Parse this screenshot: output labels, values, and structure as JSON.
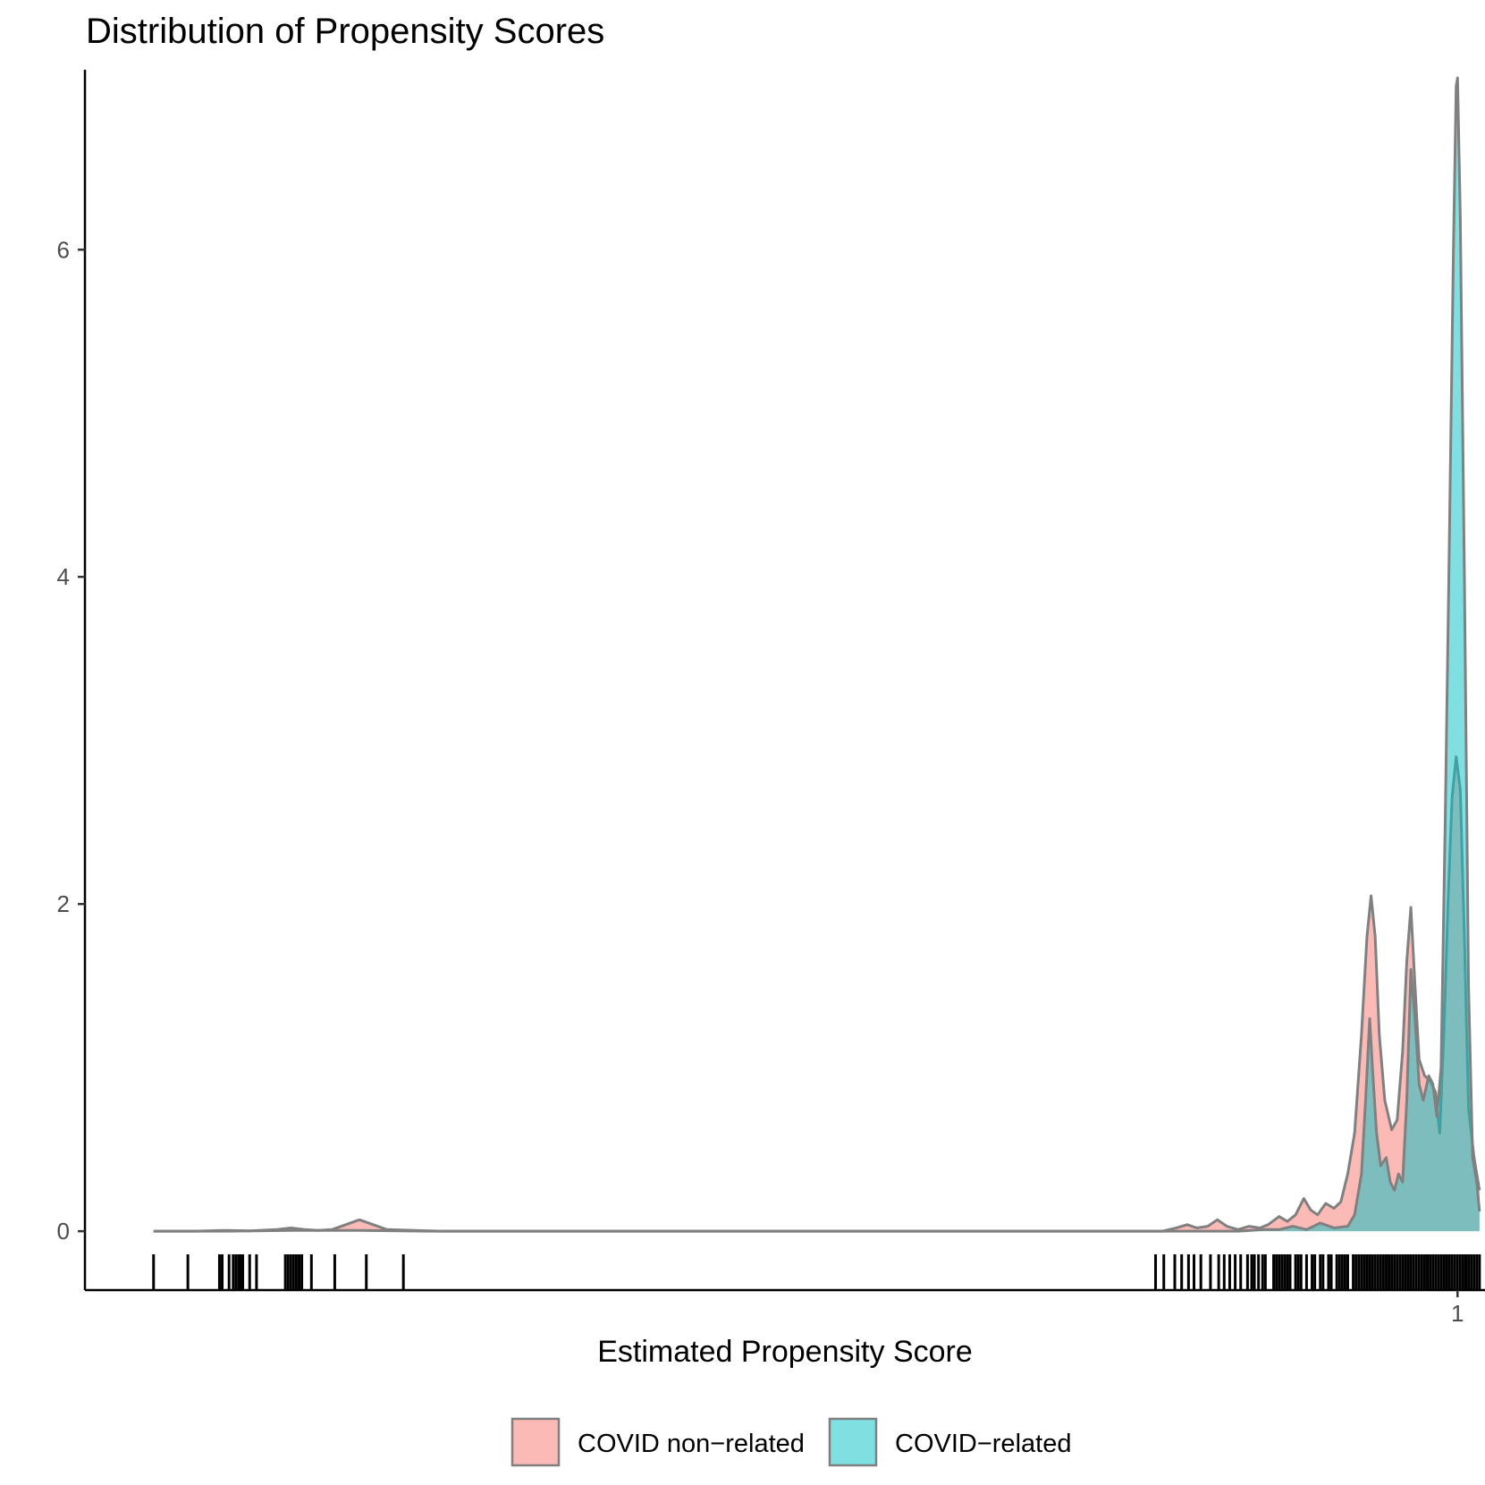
{
  "chart_data": {
    "type": "area",
    "title": "Distribution of Propensity Scores",
    "xlabel": "Estimated Propensity Score",
    "ylabel": "",
    "xlim": [
      0.0,
      1.02
    ],
    "ylim": [
      -0.36,
      7.1
    ],
    "x_ticks": [
      1
    ],
    "x_tick_labels": [
      "1"
    ],
    "y_ticks": [
      0,
      2,
      4,
      6
    ],
    "y_tick_labels": [
      "0",
      "2",
      "4",
      "6"
    ],
    "grid": false,
    "legend_position": "bottom",
    "outline_color": "#808080",
    "series": [
      {
        "name": "COVID non−related",
        "color": "#F8766D",
        "opacity": 0.5,
        "points": [
          [
            0.05,
            0
          ],
          [
            0.08,
            0
          ],
          [
            0.1,
            0.005
          ],
          [
            0.12,
            0.002
          ],
          [
            0.14,
            0.01
          ],
          [
            0.15,
            0.02
          ],
          [
            0.16,
            0.01
          ],
          [
            0.17,
            0.005
          ],
          [
            0.18,
            0.01
          ],
          [
            0.19,
            0.04
          ],
          [
            0.2,
            0.07
          ],
          [
            0.21,
            0.04
          ],
          [
            0.22,
            0.01
          ],
          [
            0.24,
            0.005
          ],
          [
            0.26,
            0
          ],
          [
            0.5,
            0
          ],
          [
            0.75,
            0
          ],
          [
            0.785,
            0
          ],
          [
            0.795,
            0.02
          ],
          [
            0.803,
            0.04
          ],
          [
            0.81,
            0.02
          ],
          [
            0.818,
            0.03
          ],
          [
            0.825,
            0.07
          ],
          [
            0.832,
            0.03
          ],
          [
            0.84,
            0.01
          ],
          [
            0.848,
            0.03
          ],
          [
            0.856,
            0.02
          ],
          [
            0.862,
            0.04
          ],
          [
            0.87,
            0.09
          ],
          [
            0.876,
            0.06
          ],
          [
            0.882,
            0.1
          ],
          [
            0.888,
            0.2
          ],
          [
            0.893,
            0.13
          ],
          [
            0.898,
            0.1
          ],
          [
            0.904,
            0.17
          ],
          [
            0.91,
            0.14
          ],
          [
            0.915,
            0.18
          ],
          [
            0.92,
            0.35
          ],
          [
            0.925,
            0.6
          ],
          [
            0.93,
            1.2
          ],
          [
            0.934,
            1.8
          ],
          [
            0.937,
            2.05
          ],
          [
            0.94,
            1.8
          ],
          [
            0.943,
            1.2
          ],
          [
            0.947,
            0.8
          ],
          [
            0.952,
            0.62
          ],
          [
            0.956,
            0.68
          ],
          [
            0.96,
            1.1
          ],
          [
            0.963,
            1.65
          ],
          [
            0.966,
            1.98
          ],
          [
            0.969,
            1.5
          ],
          [
            0.972,
            1.05
          ],
          [
            0.976,
            0.95
          ],
          [
            0.98,
            0.92
          ],
          [
            0.984,
            0.85
          ],
          [
            0.987,
            0.6
          ],
          [
            0.99,
            1.2
          ],
          [
            0.993,
            2.0
          ],
          [
            0.996,
            2.65
          ],
          [
            0.999,
            2.9
          ],
          [
            1.002,
            2.7
          ],
          [
            1.005,
            1.8
          ],
          [
            1.008,
            0.75
          ],
          [
            1.012,
            0.45
          ],
          [
            1.016,
            0.25
          ]
        ]
      },
      {
        "name": "COVID−related",
        "color": "#00BFC4",
        "opacity": 0.5,
        "points": [
          [
            0.05,
            0
          ],
          [
            0.1,
            0
          ],
          [
            0.15,
            0.005
          ],
          [
            0.2,
            0.005
          ],
          [
            0.25,
            0
          ],
          [
            0.5,
            0
          ],
          [
            0.75,
            0
          ],
          [
            0.8,
            0
          ],
          [
            0.84,
            0
          ],
          [
            0.86,
            0.01
          ],
          [
            0.87,
            0.01
          ],
          [
            0.88,
            0.03
          ],
          [
            0.89,
            0.01
          ],
          [
            0.9,
            0.05
          ],
          [
            0.91,
            0.02
          ],
          [
            0.92,
            0.03
          ],
          [
            0.925,
            0.1
          ],
          [
            0.93,
            0.35
          ],
          [
            0.933,
            0.8
          ],
          [
            0.936,
            1.3
          ],
          [
            0.938,
            1.0
          ],
          [
            0.941,
            0.6
          ],
          [
            0.944,
            0.4
          ],
          [
            0.948,
            0.45
          ],
          [
            0.951,
            0.3
          ],
          [
            0.954,
            0.25
          ],
          [
            0.957,
            0.35
          ],
          [
            0.96,
            0.3
          ],
          [
            0.963,
            0.8
          ],
          [
            0.966,
            1.6
          ],
          [
            0.969,
            1.3
          ],
          [
            0.972,
            0.9
          ],
          [
            0.975,
            0.8
          ],
          [
            0.979,
            0.95
          ],
          [
            0.982,
            0.9
          ],
          [
            0.985,
            0.7
          ],
          [
            0.988,
            1.0
          ],
          [
            0.991,
            2.5
          ],
          [
            0.994,
            4.2
          ],
          [
            0.997,
            6.0
          ],
          [
            0.999,
            7.0
          ],
          [
            1.0,
            7.05
          ],
          [
            1.002,
            6.2
          ],
          [
            1.005,
            4.0
          ],
          [
            1.008,
            1.5
          ],
          [
            1.011,
            0.45
          ],
          [
            1.014,
            0.3
          ],
          [
            1.016,
            0.12
          ]
        ]
      }
    ],
    "rug_color": "#000000",
    "rug": [
      0.05,
      0.075,
      0.098,
      0.1,
      0.105,
      0.108,
      0.11,
      0.112,
      0.113,
      0.114,
      0.115,
      0.12,
      0.125,
      0.146,
      0.148,
      0.15,
      0.152,
      0.154,
      0.156,
      0.158,
      0.165,
      0.182,
      0.205,
      0.232,
      0.78,
      0.786,
      0.794,
      0.799,
      0.804,
      0.808,
      0.813,
      0.82,
      0.826,
      0.83,
      0.834,
      0.838,
      0.842,
      0.847,
      0.85,
      0.852,
      0.855,
      0.858,
      0.86,
      0.866,
      0.868,
      0.87,
      0.872,
      0.874,
      0.876,
      0.878,
      0.882,
      0.884,
      0.886,
      0.89,
      0.894,
      0.896,
      0.9,
      0.902,
      0.906,
      0.908,
      0.912,
      0.914,
      0.916,
      0.918,
      0.92,
      0.924,
      0.926,
      0.928,
      0.93,
      0.932,
      0.934,
      0.936,
      0.938,
      0.94,
      0.942,
      0.944,
      0.946,
      0.948,
      0.95,
      0.952,
      0.954,
      0.956,
      0.958,
      0.96,
      0.962,
      0.964,
      0.966,
      0.968,
      0.97,
      0.972,
      0.974,
      0.976,
      0.978,
      0.98,
      0.982,
      0.984,
      0.986,
      0.988,
      0.99,
      0.992,
      0.994,
      0.996,
      0.998,
      1.0,
      1.002,
      1.004,
      1.006,
      1.008,
      1.01,
      1.012,
      1.014,
      1.016
    ]
  }
}
